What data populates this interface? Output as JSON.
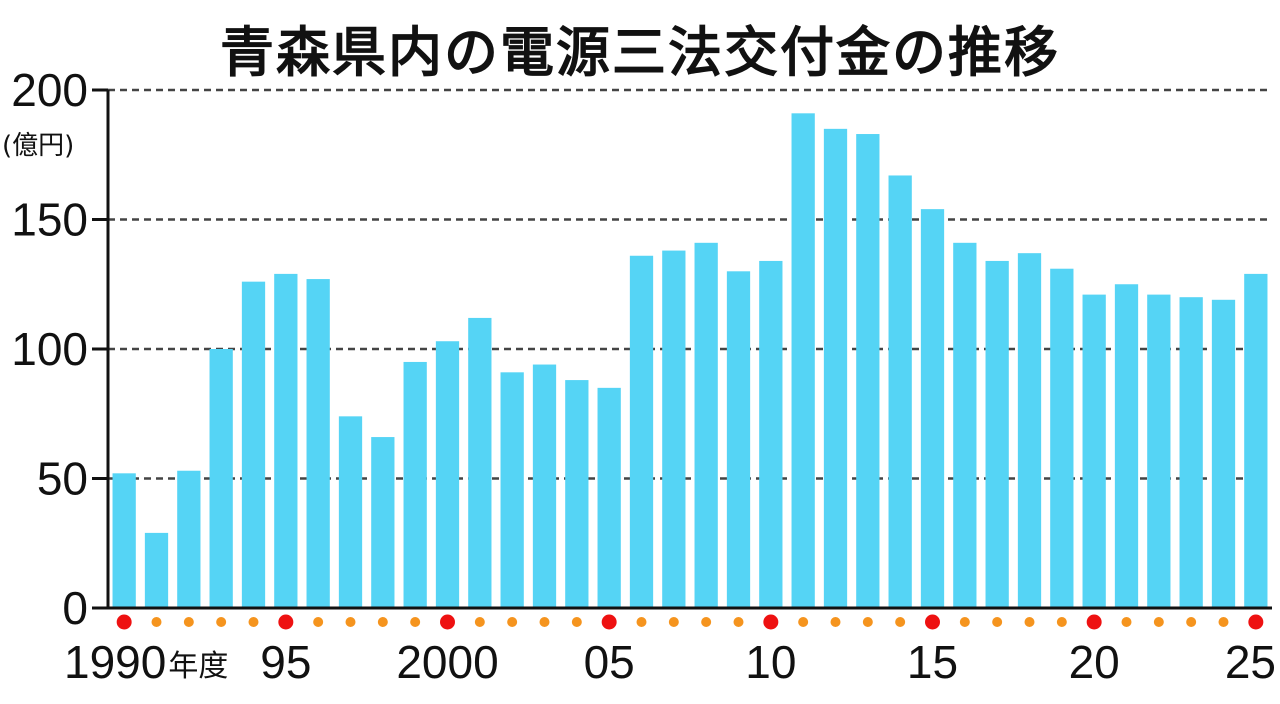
{
  "chart_data": {
    "type": "bar",
    "title": "青森県内の電源三法交付金の推移",
    "ylabel": "(億円)",
    "xlabel_suffix": "年度",
    "ylim": [
      0,
      200
    ],
    "y_ticks": [
      0,
      50,
      100,
      150,
      200
    ],
    "grid": true,
    "categories": [
      1990,
      1991,
      1992,
      1993,
      1994,
      1995,
      1996,
      1997,
      1998,
      1999,
      2000,
      2001,
      2002,
      2003,
      2004,
      2005,
      2006,
      2007,
      2008,
      2009,
      2010,
      2011,
      2012,
      2013,
      2014,
      2015,
      2016,
      2017,
      2018,
      2019,
      2020,
      2021,
      2022,
      2023,
      2024,
      2025
    ],
    "values": [
      52,
      29,
      53,
      100,
      126,
      129,
      127,
      74,
      66,
      95,
      103,
      112,
      91,
      94,
      88,
      85,
      136,
      138,
      141,
      130,
      134,
      191,
      185,
      183,
      167,
      154,
      141,
      134,
      137,
      131,
      121,
      125,
      121,
      120,
      119,
      129
    ],
    "x_tick_labels": [
      {
        "category": 1990,
        "label": "1990"
      },
      {
        "category": 1995,
        "label": "95"
      },
      {
        "category": 2000,
        "label": "2000"
      },
      {
        "category": 2005,
        "label": "05"
      },
      {
        "category": 2010,
        "label": "10"
      },
      {
        "category": 2015,
        "label": "15"
      },
      {
        "category": 2020,
        "label": "20"
      },
      {
        "category": 2025,
        "label": "25"
      }
    ],
    "colors": {
      "bar": "#55d4f5",
      "major_dot": "#ee1111",
      "minor_dot": "#f5941e",
      "axis": "#111111",
      "grid": "#444444"
    }
  }
}
